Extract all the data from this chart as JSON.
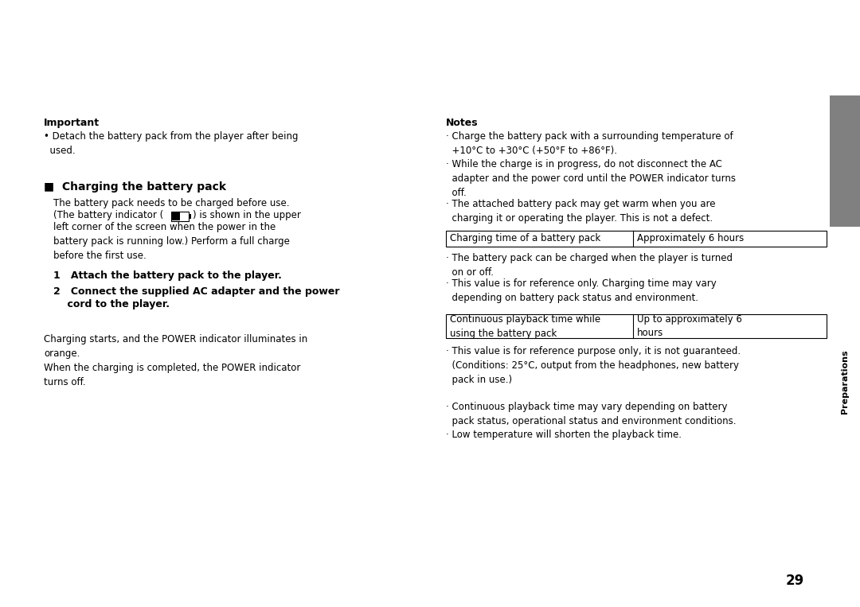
{
  "bg_color": "#ffffff",
  "tab_color": "#808080",
  "tab_text": "Preparations",
  "page_number": "29",
  "important_title": "Important",
  "important_bullet": "• Detach the battery pack from the player after being\n  used.",
  "charging_title": "■  Charging the battery pack",
  "charging_body1": "The battery pack needs to be charged before use.",
  "charging_body2": "(The battery indicator (      ) is shown in the upper",
  "charging_body3": "left corner of the screen when the power in the\nbattery pack is running low.) Perform a full charge\nbefore the first use.",
  "step1": "1   Attach the battery pack to the player.",
  "step2_line1": "2   Connect the supplied AC adapter and the power",
  "step2_line2": "    cord to the player.",
  "charging_note": "Charging starts, and the POWER indicator illuminates in\norange.\nWhen the charging is completed, the POWER indicator\nturns off.",
  "notes_title": "Notes",
  "note1": "· Charge the battery pack with a surrounding temperature of\n  +10°C to +30°C (+50°F to +86°F).",
  "note2": "· While the charge is in progress, do not disconnect the AC\n  adapter and the power cord until the POWER indicator turns\n  off.",
  "note3": "· The attached battery pack may get warm when you are\n  charging it or operating the player. This is not a defect.",
  "table1_col1": "Charging time of a battery pack",
  "table1_col2": "Approximately 6 hours",
  "table1_note1": "· The battery pack can be charged when the player is turned\n  on or off.",
  "table1_note2": "· This value is for reference only. Charging time may vary\n  depending on battery pack status and environment.",
  "table2_col1": "Continuous playback time while\nusing the battery pack",
  "table2_col2": "Up to approximately 6\nhours",
  "table2_note1": "· This value is for reference purpose only, it is not guaranteed.\n  (Conditions: 25°C, output from the headphones, new battery\n  pack in use.)",
  "table2_note2": "· Continuous playback time may vary depending on battery\n  pack status, operational status and environment conditions.",
  "table2_note3": "· Low temperature will shorten the playback time."
}
